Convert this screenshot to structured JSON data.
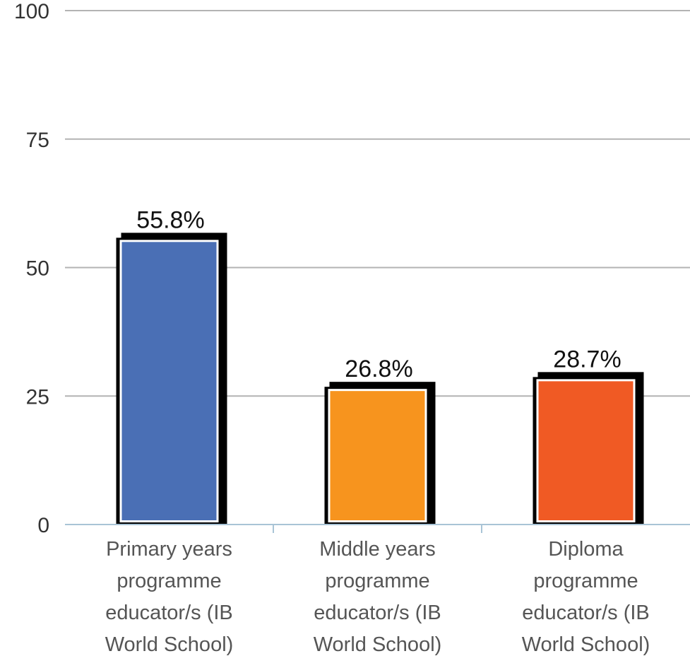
{
  "chart_data": {
    "type": "bar",
    "categories": [
      [
        "Primary years",
        "programme",
        "educator/s (IB",
        "World School)"
      ],
      [
        "Middle years",
        "programme",
        "educator/s (IB",
        "World School)"
      ],
      [
        "Diploma",
        "programme",
        "educator/s (IB",
        "World School)"
      ]
    ],
    "values": [
      55.8,
      26.8,
      28.7
    ],
    "data_labels": [
      "55.8%",
      "26.8%",
      "28.7%"
    ],
    "colors": [
      "#4a6fb5",
      "#f7941e",
      "#f05a24"
    ],
    "ylim": [
      0,
      100
    ],
    "yticks": [
      {
        "value": 0,
        "label": "0"
      },
      {
        "value": 25,
        "label": "25"
      },
      {
        "value": 50,
        "label": "50"
      },
      {
        "value": 75,
        "label": "75"
      },
      {
        "value": 100,
        "label": "100"
      }
    ],
    "grid": true,
    "legend": "none",
    "title": "",
    "xlabel": "",
    "ylabel": ""
  }
}
